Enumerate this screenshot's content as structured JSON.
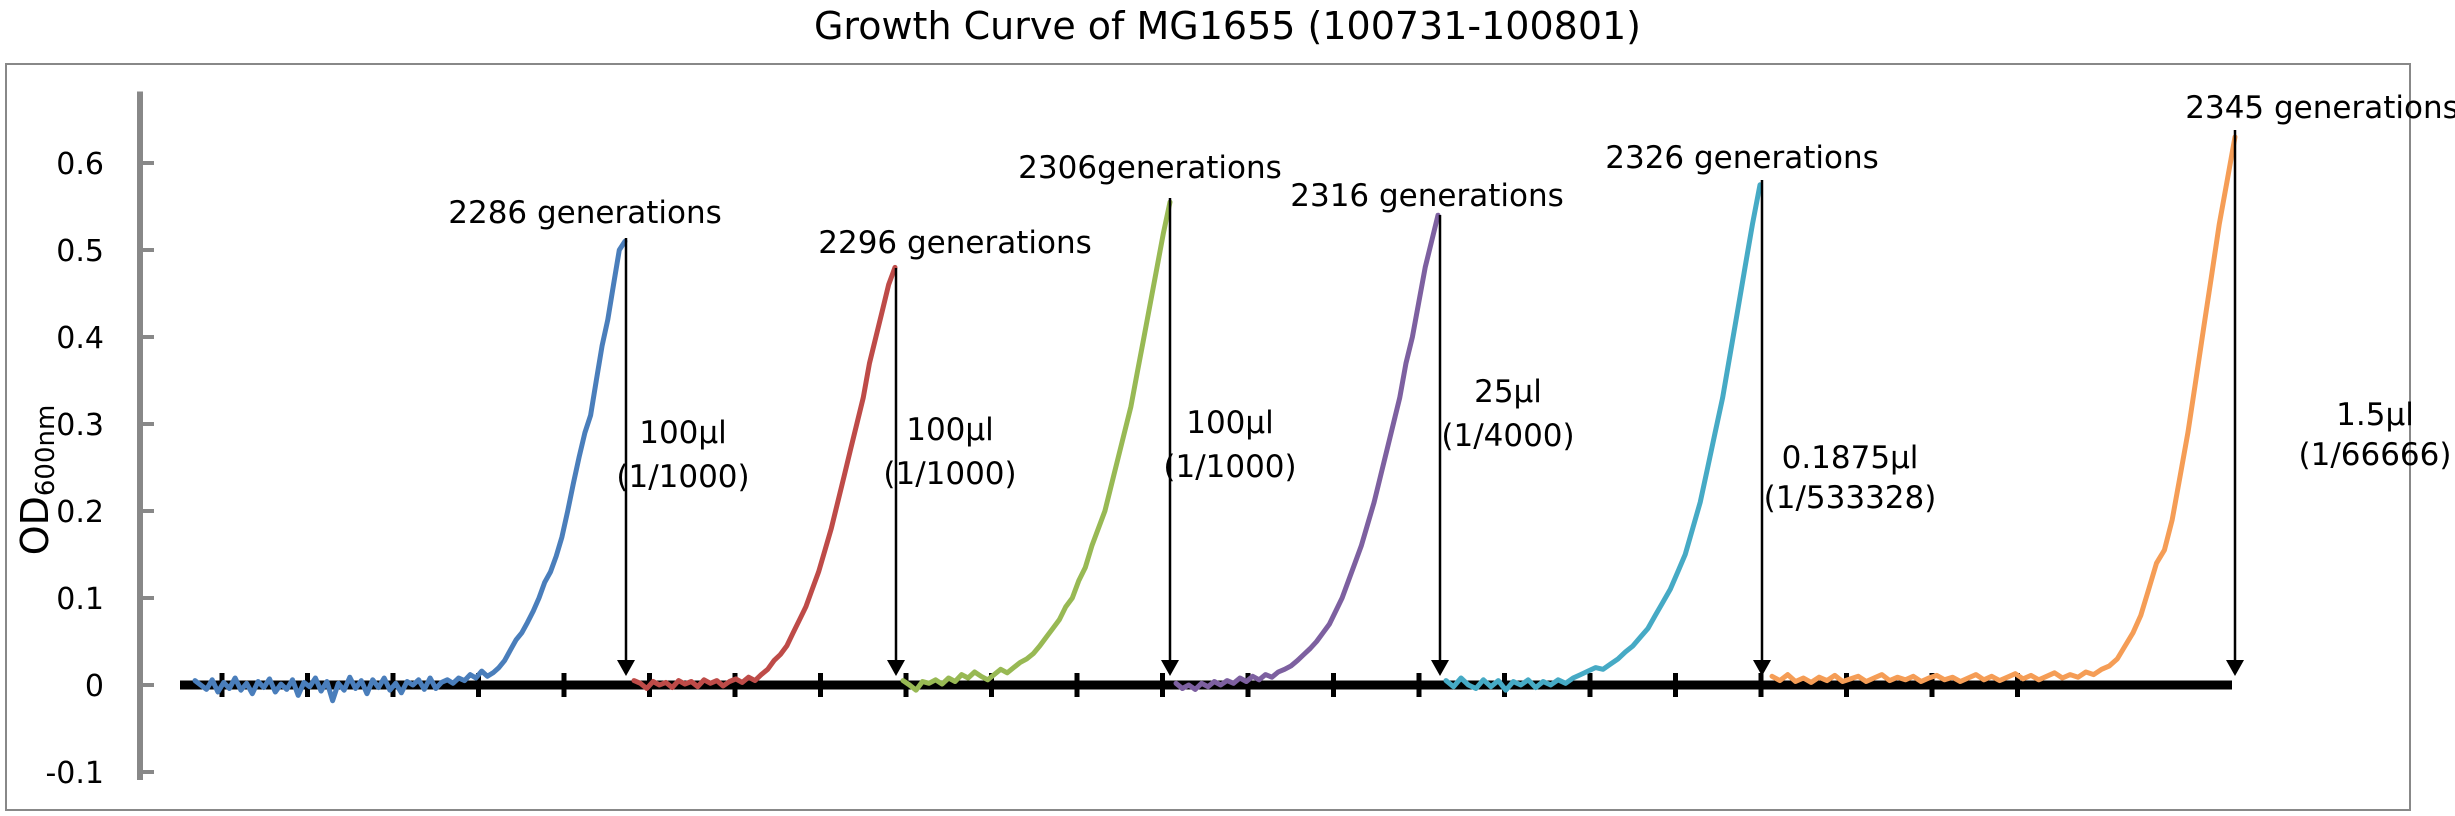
{
  "chart_data": {
    "type": "line",
    "title": "Growth Curve of MG1655 (100731-100801)",
    "ylabel_main": "OD",
    "ylabel_sub": "600nm",
    "ylim": [
      -0.1,
      0.65
    ],
    "yticks": [
      {
        "value": -0.1,
        "label": "-0.1"
      },
      {
        "value": 0,
        "label": "0"
      },
      {
        "value": 0.1,
        "label": "0.1"
      },
      {
        "value": 0.2,
        "label": "0.2"
      },
      {
        "value": 0.3,
        "label": "0.3"
      },
      {
        "value": 0.4,
        "label": "0.4"
      },
      {
        "value": 0.5,
        "label": "0.5"
      },
      {
        "value": 0.6,
        "label": "0.6"
      }
    ],
    "grid": false,
    "legend": "none",
    "series": [
      {
        "color": "#4a7ebb",
        "y": [
          0.005,
          0.0,
          -0.005,
          0.006,
          -0.008,
          0.003,
          -0.004,
          0.008,
          -0.006,
          0.002,
          -0.01,
          0.004,
          -0.003,
          0.007,
          -0.008,
          0.001,
          -0.005,
          0.006,
          -0.012,
          0.003,
          -0.002,
          0.008,
          -0.007,
          0.004,
          -0.018,
          0.002,
          -0.006,
          0.009,
          -0.004,
          0.005,
          -0.01,
          0.006,
          -0.003,
          0.008,
          -0.006,
          0.002,
          -0.009,
          0.004,
          0.0,
          0.006,
          -0.005,
          0.008,
          -0.004,
          0.003,
          0.006,
          0.002,
          0.008,
          0.005,
          0.012,
          0.008,
          0.016,
          0.01,
          0.014,
          0.02,
          0.028,
          0.04,
          0.052,
          0.06,
          0.072,
          0.085,
          0.1,
          0.118,
          0.13,
          0.148,
          0.17,
          0.2,
          0.232,
          0.262,
          0.29,
          0.31,
          0.35,
          0.39,
          0.42,
          0.46,
          0.5,
          0.51
        ]
      },
      {
        "color": "#be4b48",
        "y": [
          0.005,
          0.002,
          -0.004,
          0.004,
          0.0,
          0.003,
          -0.003,
          0.005,
          0.001,
          0.004,
          -0.002,
          0.006,
          0.002,
          0.005,
          -0.001,
          0.004,
          0.007,
          0.003,
          0.009,
          0.005,
          0.012,
          0.018,
          0.028,
          0.035,
          0.045,
          0.06,
          0.075,
          0.09,
          0.11,
          0.13,
          0.155,
          0.18,
          0.21,
          0.24,
          0.27,
          0.3,
          0.33,
          0.37,
          0.4,
          0.43,
          0.46,
          0.48
        ]
      },
      {
        "color": "#98b954",
        "y": [
          0.005,
          0.0,
          -0.006,
          0.004,
          0.002,
          0.006,
          0.001,
          0.008,
          0.004,
          0.012,
          0.008,
          0.015,
          0.01,
          0.006,
          0.012,
          0.018,
          0.014,
          0.02,
          0.026,
          0.03,
          0.036,
          0.045,
          0.055,
          0.065,
          0.075,
          0.09,
          0.1,
          0.12,
          0.135,
          0.16,
          0.18,
          0.2,
          0.23,
          0.26,
          0.29,
          0.32,
          0.36,
          0.4,
          0.44,
          0.48,
          0.52,
          0.555
        ]
      },
      {
        "color": "#7d60a0",
        "y": [
          0.002,
          -0.004,
          0.0,
          -0.005,
          0.002,
          -0.002,
          0.004,
          0.0,
          0.005,
          0.002,
          0.008,
          0.004,
          0.01,
          0.006,
          0.012,
          0.009,
          0.015,
          0.018,
          0.022,
          0.028,
          0.035,
          0.042,
          0.05,
          0.06,
          0.07,
          0.085,
          0.1,
          0.12,
          0.14,
          0.16,
          0.185,
          0.21,
          0.24,
          0.27,
          0.3,
          0.33,
          0.37,
          0.4,
          0.44,
          0.48,
          0.51,
          0.54
        ]
      },
      {
        "color": "#46aac5",
        "y": [
          0.005,
          -0.002,
          0.008,
          0.0,
          -0.004,
          0.006,
          -0.002,
          0.005,
          -0.006,
          0.004,
          0.0,
          0.006,
          -0.003,
          0.004,
          0.0,
          0.006,
          0.002,
          0.008,
          0.012,
          0.016,
          0.02,
          0.018,
          0.024,
          0.03,
          0.038,
          0.045,
          0.055,
          0.065,
          0.08,
          0.095,
          0.11,
          0.13,
          0.15,
          0.18,
          0.21,
          0.25,
          0.29,
          0.33,
          0.38,
          0.43,
          0.48,
          0.53,
          0.575
        ]
      },
      {
        "color": "#f59d56",
        "y": [
          0.01,
          0.005,
          0.012,
          0.004,
          0.008,
          0.003,
          0.009,
          0.005,
          0.011,
          0.004,
          0.007,
          0.01,
          0.004,
          0.008,
          0.012,
          0.005,
          0.009,
          0.006,
          0.01,
          0.004,
          0.008,
          0.011,
          0.006,
          0.009,
          0.004,
          0.008,
          0.012,
          0.006,
          0.01,
          0.005,
          0.009,
          0.013,
          0.007,
          0.011,
          0.006,
          0.01,
          0.014,
          0.008,
          0.012,
          0.009,
          0.015,
          0.012,
          0.018,
          0.022,
          0.03,
          0.045,
          0.06,
          0.08,
          0.11,
          0.14,
          0.155,
          0.19,
          0.24,
          0.29,
          0.35,
          0.41,
          0.47,
          0.53,
          0.58,
          0.63
        ]
      }
    ],
    "annotations": [
      {
        "generation": "2286 generations",
        "volume": "100μl",
        "dilution": "(1/1000)"
      },
      {
        "generation": "2296 generations",
        "volume": "100μl",
        "dilution": "(1/1000)"
      },
      {
        "generation": "2306generations",
        "volume": "100μl",
        "dilution": "(1/1000)"
      },
      {
        "generation": "2316 generations",
        "volume": "25μl",
        "dilution": "(1/4000)"
      },
      {
        "generation": "2326 generations",
        "volume": "0.1875μl",
        "dilution": "(1/533328)"
      },
      {
        "generation": "2345 generations",
        "volume": "1.5μl",
        "dilution": "(1/66666)"
      }
    ]
  }
}
